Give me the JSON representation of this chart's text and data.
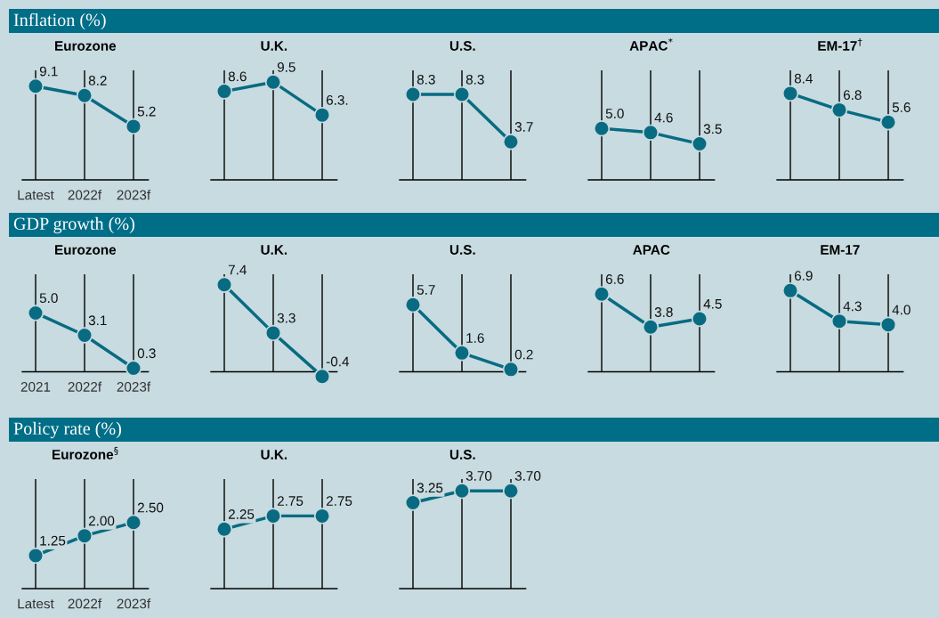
{
  "chart_data": [
    {
      "type": "line",
      "title": "Eurozone",
      "annotations": [
        "Inflation (%)"
      ],
      "categories": [
        "Latest",
        "2022f",
        "2023f"
      ],
      "values": [
        9.1,
        8.2,
        5.2
      ],
      "value_labels": [
        "9.1",
        "8.2",
        "5.2"
      ],
      "color": "#086b82",
      "grid": "x",
      "marker": "circle",
      "tick_labels": "x"
    },
    {
      "type": "line",
      "title": "U.K.",
      "categories": [
        null,
        null,
        null
      ],
      "values": [
        8.6,
        9.5,
        6.3
      ],
      "value_labels": [
        "8.6",
        "9.5",
        "6.3."
      ],
      "color": "#086b82",
      "grid": "x",
      "marker": "circle",
      "tick_labels": false
    },
    {
      "type": "line",
      "title": "U.S.",
      "categories": [
        null,
        null,
        null
      ],
      "values": [
        8.3,
        8.3,
        3.7
      ],
      "value_labels": [
        "8.3",
        "8.3",
        "3.7"
      ],
      "color": "#086b82",
      "grid": "x",
      "marker": "circle",
      "tick_labels": false
    },
    {
      "type": "line",
      "title": "APAC$^{*}$",
      "categories": [
        null,
        null,
        null
      ],
      "values": [
        5.0,
        4.6,
        3.5
      ],
      "value_labels": [
        "5.0",
        "4.6",
        "3.5"
      ],
      "color": "#086b82",
      "grid": "x",
      "marker": "circle",
      "tick_labels": false
    },
    {
      "type": "line",
      "title": "EM-17$^{†}$",
      "categories": [
        null,
        null,
        null
      ],
      "values": [
        8.4,
        6.8,
        5.6
      ],
      "value_labels": [
        "8.4",
        "6.8",
        "5.6"
      ],
      "color": "#086b82",
      "grid": "x",
      "marker": "circle",
      "tick_labels": false
    },
    {
      "type": "line",
      "title": "Eurozone",
      "annotations": [
        "GDP growth (%)"
      ],
      "categories": [
        "2021",
        "2022f",
        "2023f"
      ],
      "values": [
        5.0,
        3.1,
        0.3
      ],
      "value_labels": [
        "5.0",
        "3.1",
        "0.3"
      ],
      "color": "#086b82",
      "grid": "x",
      "marker": "circle",
      "tick_labels": "x"
    },
    {
      "type": "line",
      "title": "U.K.",
      "categories": [
        null,
        null,
        null
      ],
      "values": [
        7.4,
        3.3,
        -0.4
      ],
      "value_labels": [
        "7.4",
        "3.3",
        "-0.4"
      ],
      "color": "#086b82",
      "grid": "x",
      "marker": "circle",
      "tick_labels": false
    },
    {
      "type": "line",
      "title": "U.S.",
      "categories": [
        null,
        null,
        null
      ],
      "values": [
        5.7,
        1.6,
        0.2
      ],
      "value_labels": [
        "5.7",
        "1.6",
        "0.2"
      ],
      "color": "#086b82",
      "grid": "x",
      "marker": "circle",
      "tick_labels": false
    },
    {
      "type": "line",
      "title": "APAC",
      "categories": [
        null,
        null,
        null
      ],
      "values": [
        6.6,
        3.8,
        4.5
      ],
      "value_labels": [
        "6.6",
        "3.8",
        "4.5"
      ],
      "color": "#086b82",
      "grid": "x",
      "marker": "circle",
      "tick_labels": false
    },
    {
      "type": "line",
      "title": "EM-17",
      "categories": [
        null,
        null,
        null
      ],
      "values": [
        6.9,
        4.3,
        4.0
      ],
      "value_labels": [
        "6.9",
        "4.3",
        "4.0"
      ],
      "color": "#086b82",
      "grid": "x",
      "marker": "circle",
      "tick_labels": false
    },
    {
      "type": "line",
      "title": "Eurozone$^{§}$",
      "annotations": [
        "Policy rate (%)"
      ],
      "categories": [
        "Latest",
        "2022f",
        "2023f"
      ],
      "values": [
        1.25,
        2.0,
        2.5
      ],
      "value_labels": [
        "1.25",
        "2.00",
        "2.50"
      ],
      "color": "#086b82",
      "grid": "x",
      "marker": "circle",
      "tick_labels": "x"
    },
    {
      "type": "line",
      "title": "U.K.",
      "categories": [
        null,
        null,
        null
      ],
      "values": [
        2.25,
        2.75,
        2.75
      ],
      "value_labels": [
        "2.25",
        "2.75",
        "2.75"
      ],
      "color": "#086b82",
      "grid": "x",
      "marker": "circle",
      "tick_labels": false
    },
    {
      "type": "line",
      "title": "U.S.",
      "categories": [
        null,
        null,
        null
      ],
      "values": [
        3.25,
        3.7,
        3.7
      ],
      "value_labels": [
        "3.25",
        "3.70",
        "3.70"
      ],
      "color": "#086b82",
      "grid": "x",
      "marker": "circle",
      "tick_labels": false
    }
  ]
}
